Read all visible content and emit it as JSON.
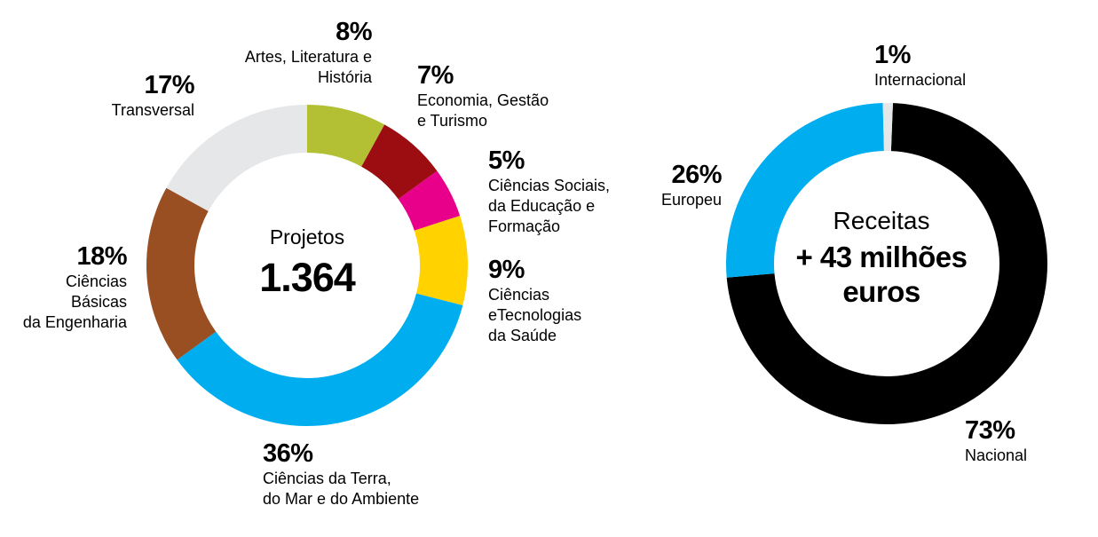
{
  "chart_data": [
    {
      "type": "donut",
      "center_title": "Projetos",
      "center_value": "1.364",
      "unit": "%",
      "segments": [
        {
          "key": "artes",
          "value": 8,
          "pct_label": "8%",
          "label_lines": [
            "Artes, Literatura e",
            "História"
          ],
          "color": "#b3c034"
        },
        {
          "key": "economia",
          "value": 7,
          "pct_label": "7%",
          "label_lines": [
            "Economia, Gestão",
            "e Turismo"
          ],
          "color": "#9b0d11"
        },
        {
          "key": "sociais",
          "value": 5,
          "pct_label": "5%",
          "label_lines": [
            "Ciências Sociais,",
            "da Educação e",
            "Formação"
          ],
          "color": "#e8008a"
        },
        {
          "key": "saude",
          "value": 9,
          "pct_label": "9%",
          "label_lines": [
            "Ciências",
            "eTecnologias",
            "da Saúde"
          ],
          "color": "#ffd200"
        },
        {
          "key": "terra",
          "value": 36,
          "pct_label": "36%",
          "label_lines": [
            "Ciências da Terra,",
            "do Mar e do Ambiente"
          ],
          "color": "#00adef"
        },
        {
          "key": "engenharia",
          "value": 18,
          "pct_label": "18%",
          "label_lines": [
            "Ciências",
            "Básicas",
            "da Engenharia"
          ],
          "color": "#9a4f22"
        },
        {
          "key": "transversal",
          "value": 17,
          "pct_label": "17%",
          "label_lines": [
            "Transversal"
          ],
          "color": "#e6e7e8"
        }
      ]
    },
    {
      "type": "donut",
      "center_title": "Receitas",
      "center_value_lines": [
        "+ 43 milhões",
        "euros"
      ],
      "unit": "%",
      "segments": [
        {
          "key": "nacional",
          "value": 73,
          "pct_label": "73%",
          "label_lines": [
            "Nacional"
          ],
          "color": "#000000"
        },
        {
          "key": "europeu",
          "value": 26,
          "pct_label": "26%",
          "label_lines": [
            "Europeu"
          ],
          "color": "#00adef"
        },
        {
          "key": "internacional",
          "value": 1,
          "pct_label": "1%",
          "label_lines": [
            "Internacional"
          ],
          "color": "#e6e7e8"
        }
      ]
    }
  ]
}
